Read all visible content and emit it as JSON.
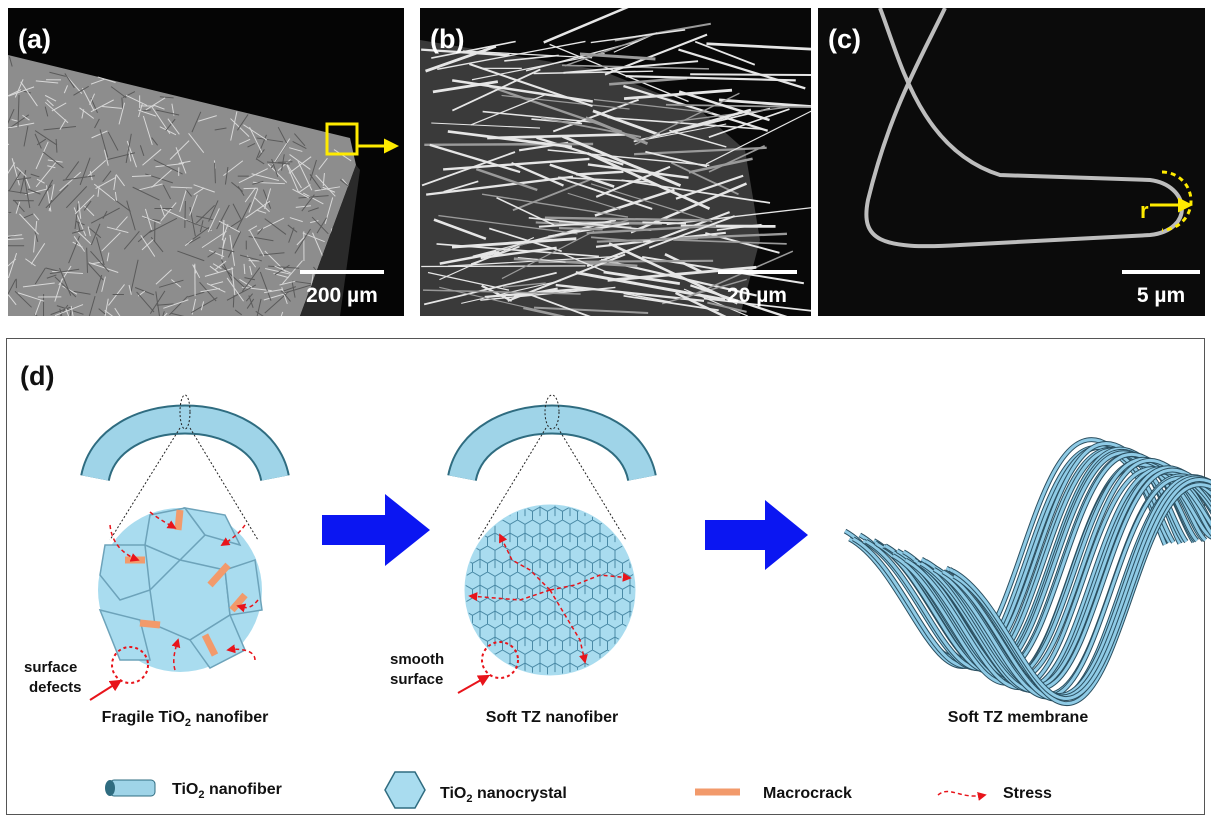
{
  "panels": {
    "a": {
      "label": "(a)",
      "scale_bar": "200 µm"
    },
    "b": {
      "label": "(b)",
      "scale_bar": "20 µm"
    },
    "c": {
      "label": "(c)",
      "scale_bar": "5 µm",
      "radius_label": "r"
    },
    "d": {
      "label": "(d)",
      "annotations": {
        "surface_defects": [
          "surface",
          "defects"
        ],
        "smooth_surface": [
          "smooth",
          "surface"
        ]
      },
      "captions": {
        "fragile": {
          "before": "Fragile TiO",
          "sub": "2",
          "after": " nanofiber"
        },
        "soft_fiber": "Soft TZ nanofiber",
        "soft_membrane": "Soft TZ membrane"
      },
      "legend": {
        "nanofiber": {
          "before": "TiO",
          "sub": "2",
          "after": " nanofiber"
        },
        "nanocrystal": {
          "before": "TiO",
          "sub": "2",
          "after": " nanocrystal"
        },
        "macrocrack": "Macrocrack",
        "stress": "Stress"
      }
    }
  }
}
